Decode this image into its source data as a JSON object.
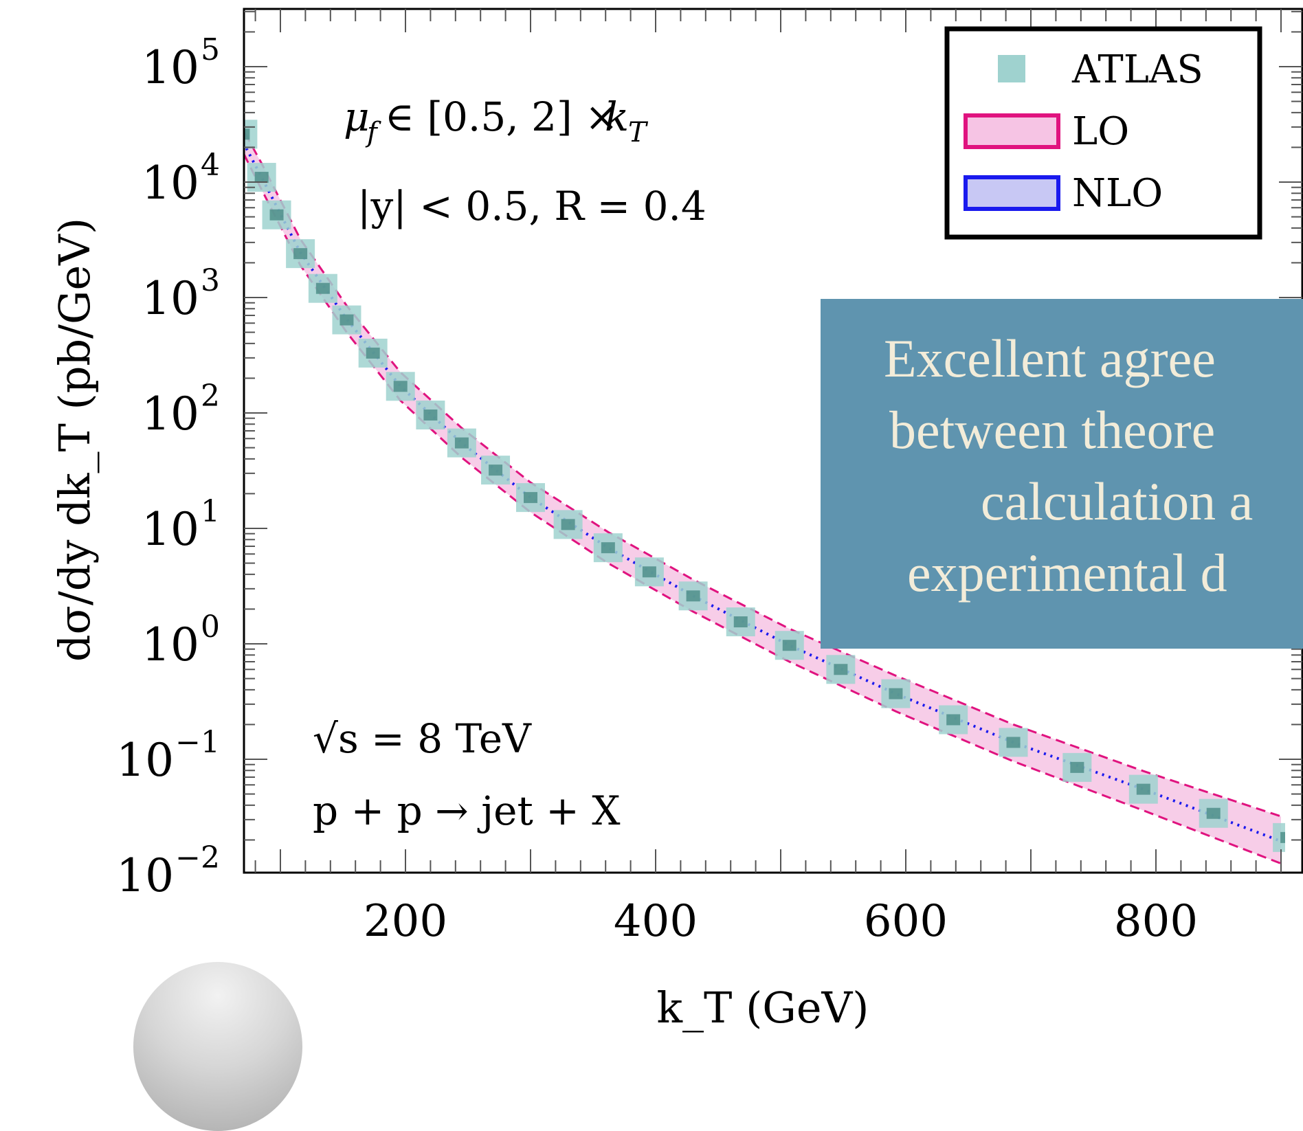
{
  "chart_data": {
    "type": "scatter",
    "yscale": "log",
    "xlabel": "k_T (GeV)",
    "ylabel": "dσ/dy dk_T (pb/GeV)",
    "xlim": [
      60,
      900
    ],
    "ylim": [
      0.01,
      300000
    ],
    "x_ticks": [
      200,
      400,
      600,
      800
    ],
    "y_ticks": [
      {
        "value": 0.01,
        "base": "10",
        "exp": "−2"
      },
      {
        "value": 0.1,
        "base": "10",
        "exp": "−1"
      },
      {
        "value": 1,
        "base": "10",
        "exp": "0"
      },
      {
        "value": 10,
        "base": "10",
        "exp": "1"
      },
      {
        "value": 100,
        "base": "10",
        "exp": "2"
      },
      {
        "value": 1000,
        "base": "10",
        "exp": "3"
      },
      {
        "value": 10000,
        "base": "10",
        "exp": "4"
      },
      {
        "value": 100000,
        "base": "10",
        "exp": "5"
      }
    ],
    "annotations": {
      "scale": "μ_f ∈ [0.5, 2] × k_T",
      "cuts": "|y| < 0.5, R = 0.4",
      "energy": "√s = 8 TeV",
      "process": "p + p → jet + X"
    },
    "legend_position": "top-right",
    "series": [
      {
        "name": "ATLAS",
        "color": "#9fd2cf",
        "points": [
          {
            "x": 70,
            "y": 26000
          },
          {
            "x": 85,
            "y": 11000
          },
          {
            "x": 97,
            "y": 5200
          },
          {
            "x": 116,
            "y": 2400
          },
          {
            "x": 134,
            "y": 1200
          },
          {
            "x": 153,
            "y": 640
          },
          {
            "x": 174,
            "y": 330
          },
          {
            "x": 196,
            "y": 170
          },
          {
            "x": 220,
            "y": 96
          },
          {
            "x": 245,
            "y": 55
          },
          {
            "x": 272,
            "y": 32
          },
          {
            "x": 300,
            "y": 18.5
          },
          {
            "x": 330,
            "y": 10.8
          },
          {
            "x": 362,
            "y": 6.8
          },
          {
            "x": 395,
            "y": 4.2
          },
          {
            "x": 430,
            "y": 2.6
          },
          {
            "x": 468,
            "y": 1.55
          },
          {
            "x": 507,
            "y": 0.97
          },
          {
            "x": 548,
            "y": 0.6
          },
          {
            "x": 592,
            "y": 0.37
          },
          {
            "x": 638,
            "y": 0.22
          },
          {
            "x": 686,
            "y": 0.14
          },
          {
            "x": 737,
            "y": 0.085
          },
          {
            "x": 790,
            "y": 0.055
          },
          {
            "x": 846,
            "y": 0.034
          },
          {
            "x": 905,
            "y": 0.021
          }
        ]
      },
      {
        "name": "LO",
        "color": "#e0137f",
        "fill": "#f6c4e4",
        "upper": [
          {
            "x": 60,
            "y": 45000
          },
          {
            "x": 85,
            "y": 14500
          },
          {
            "x": 116,
            "y": 3200
          },
          {
            "x": 153,
            "y": 850
          },
          {
            "x": 196,
            "y": 225
          },
          {
            "x": 245,
            "y": 74
          },
          {
            "x": 300,
            "y": 25
          },
          {
            "x": 362,
            "y": 9.3
          },
          {
            "x": 430,
            "y": 3.6
          },
          {
            "x": 507,
            "y": 1.35
          },
          {
            "x": 592,
            "y": 0.53
          },
          {
            "x": 686,
            "y": 0.2
          },
          {
            "x": 790,
            "y": 0.079
          },
          {
            "x": 900,
            "y": 0.032
          }
        ],
        "lower": [
          {
            "x": 60,
            "y": 30000
          },
          {
            "x": 85,
            "y": 8600
          },
          {
            "x": 116,
            "y": 1900
          },
          {
            "x": 153,
            "y": 500
          },
          {
            "x": 196,
            "y": 128
          },
          {
            "x": 245,
            "y": 41
          },
          {
            "x": 300,
            "y": 13.8
          },
          {
            "x": 362,
            "y": 5
          },
          {
            "x": 430,
            "y": 1.9
          },
          {
            "x": 507,
            "y": 0.7
          },
          {
            "x": 592,
            "y": 0.26
          },
          {
            "x": 686,
            "y": 0.096
          },
          {
            "x": 790,
            "y": 0.036
          },
          {
            "x": 900,
            "y": 0.0125
          }
        ]
      },
      {
        "name": "NLO",
        "color": "#1a1aee",
        "fill": "#c8c8f4",
        "central": [
          {
            "x": 60,
            "y": 36000
          },
          {
            "x": 85,
            "y": 11000
          },
          {
            "x": 116,
            "y": 2450
          },
          {
            "x": 153,
            "y": 650
          },
          {
            "x": 196,
            "y": 170
          },
          {
            "x": 245,
            "y": 55
          },
          {
            "x": 300,
            "y": 18.5
          },
          {
            "x": 362,
            "y": 6.8
          },
          {
            "x": 430,
            "y": 2.6
          },
          {
            "x": 507,
            "y": 0.97
          },
          {
            "x": 592,
            "y": 0.37
          },
          {
            "x": 686,
            "y": 0.14
          },
          {
            "x": 790,
            "y": 0.055
          },
          {
            "x": 900,
            "y": 0.0195
          }
        ]
      }
    ]
  },
  "callout": {
    "lines": [
      "Excellent agree",
      "between theore",
      "calculation a",
      "experimental d"
    ]
  }
}
